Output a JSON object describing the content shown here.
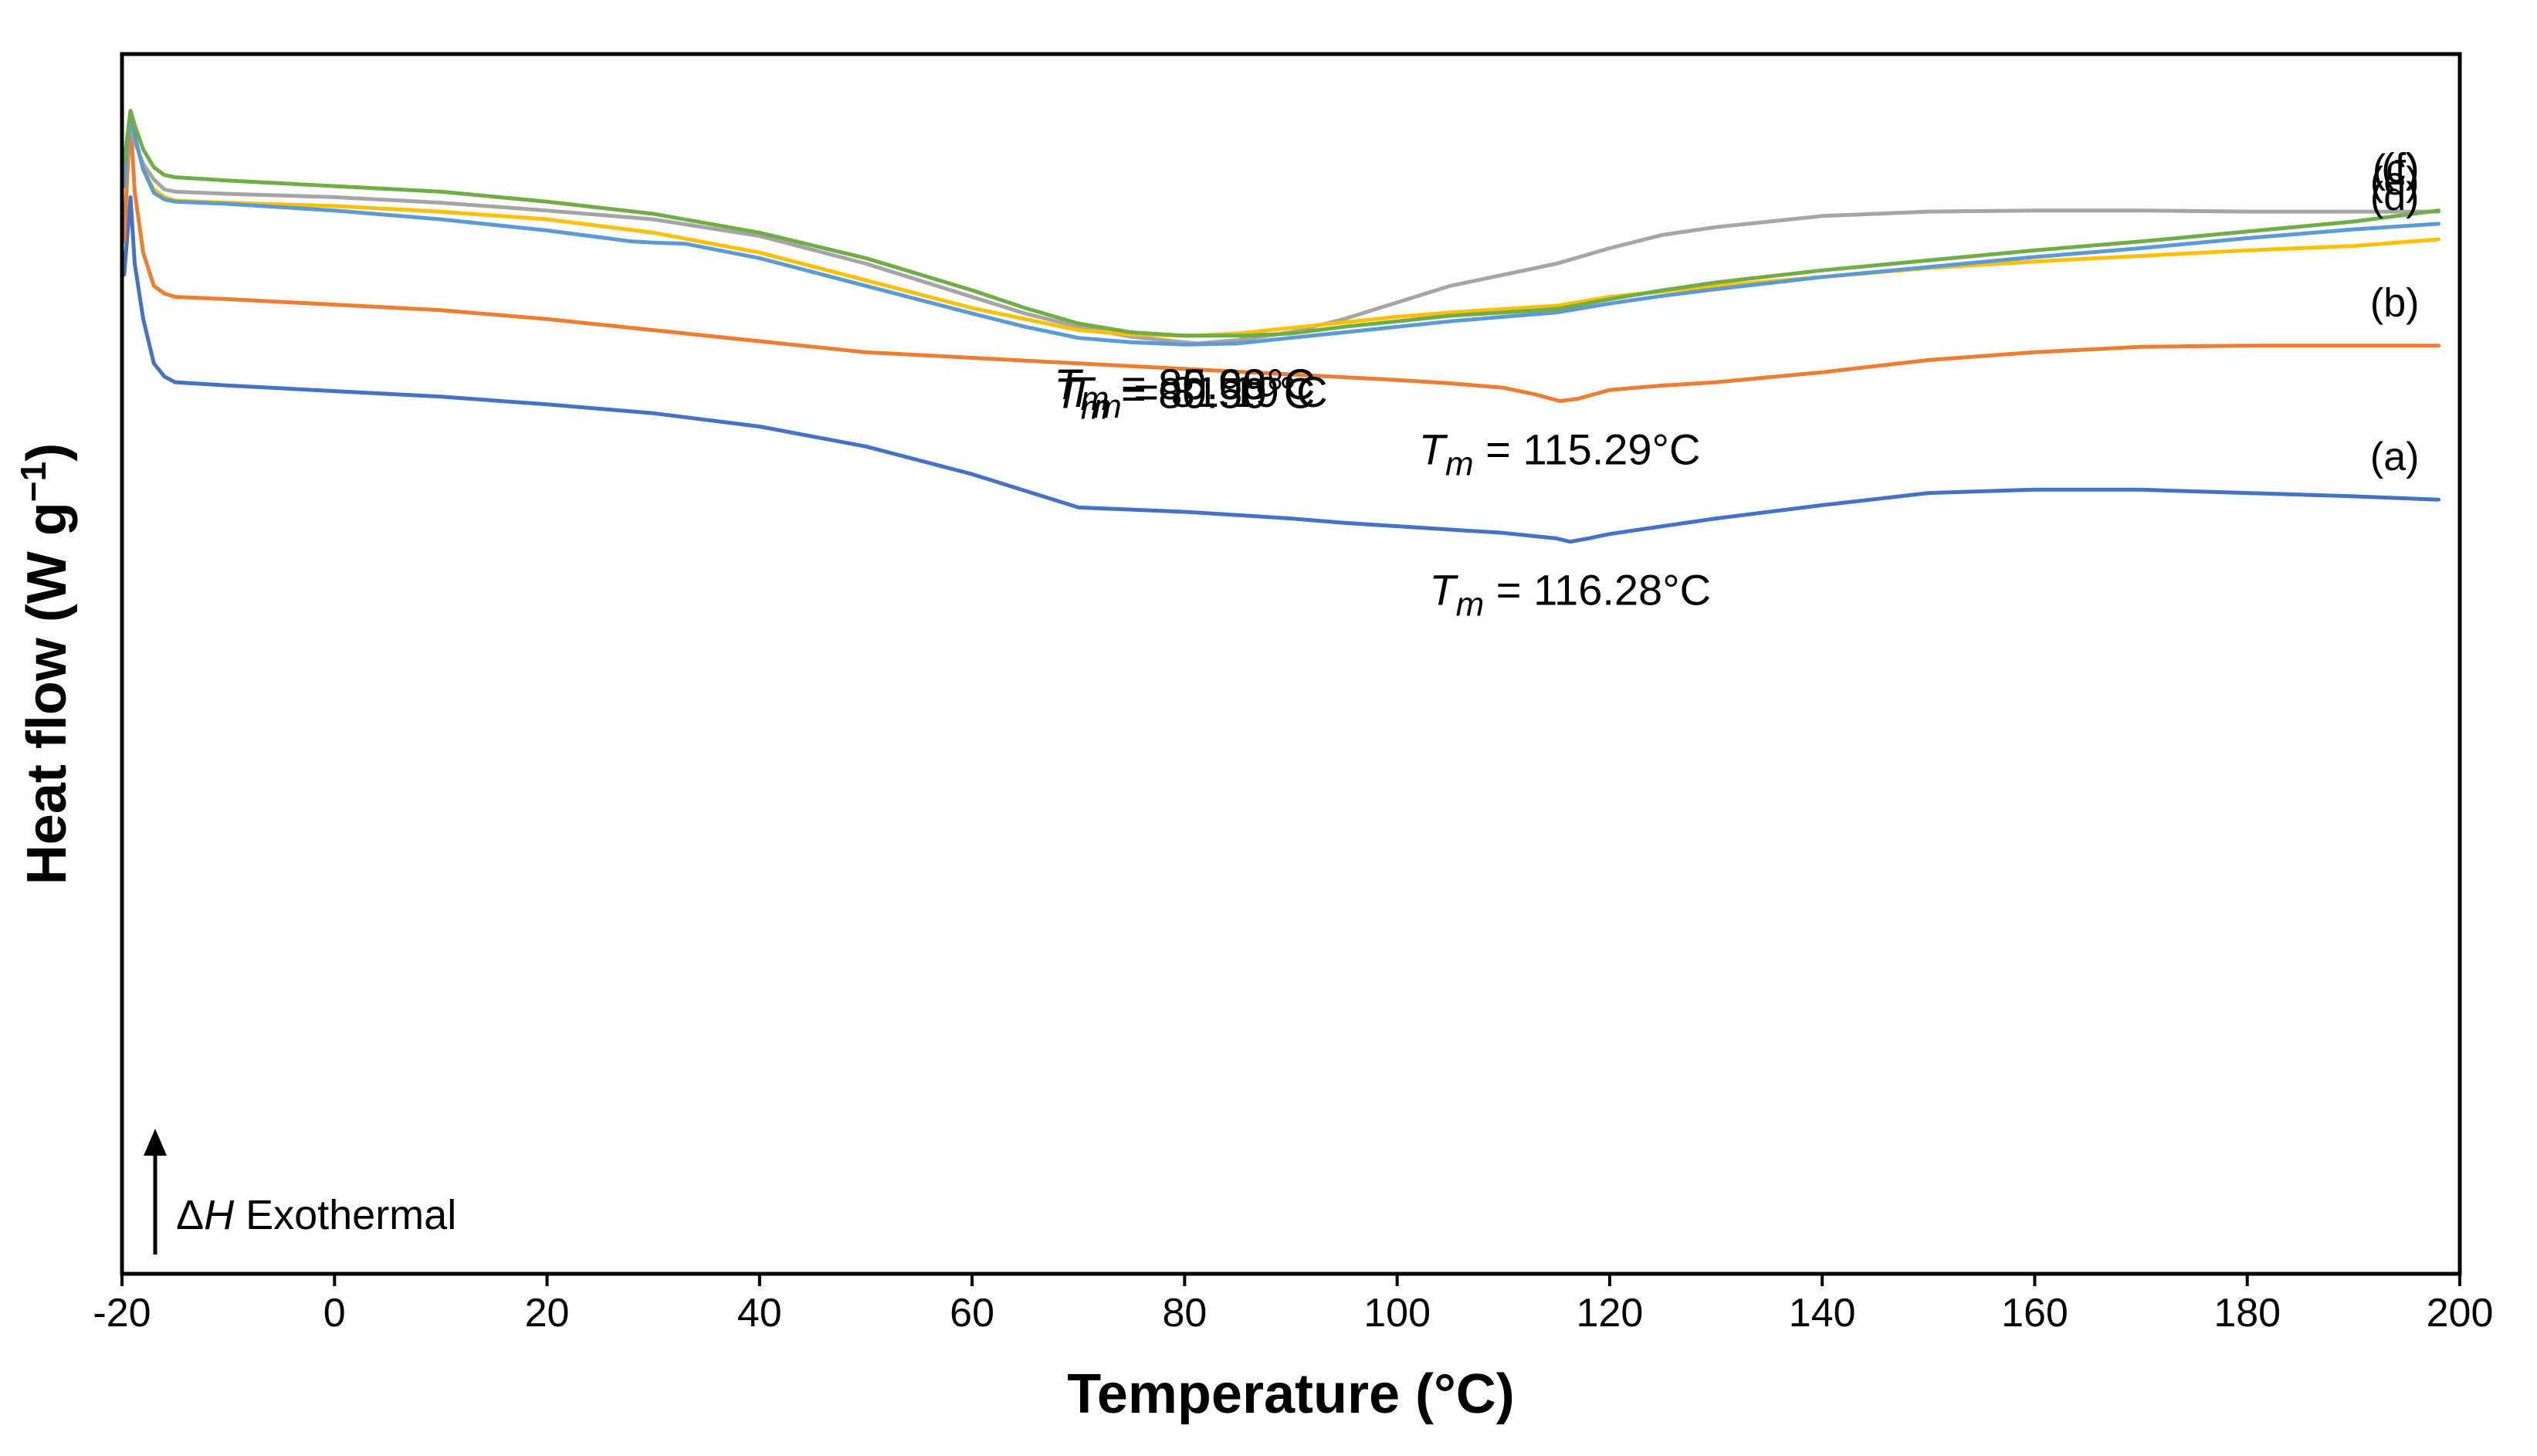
{
  "chart_data": {
    "type": "line",
    "title": "",
    "xlabel": "Temperature (°C)",
    "ylabel_main": "Heat flow (W g",
    "ylabel_sup": "−1",
    "ylabel_close": ")",
    "xlim": [
      -20,
      200
    ],
    "ylim": [
      0,
      100
    ],
    "xticks": [
      -20,
      0,
      20,
      40,
      60,
      80,
      100,
      120,
      140,
      160,
      180,
      200
    ],
    "xtick_labels": [
      "-20",
      "0",
      "20",
      "40",
      "60",
      "80",
      "100",
      "120",
      "140",
      "160",
      "180",
      "200"
    ],
    "yticks_shown": false,
    "grid": false,
    "annotation": {
      "symbol": "Δ",
      "var": "H",
      "text": " Exothermal",
      "direction": "up"
    },
    "tm_prefix": "T",
    "tm_sub": "m",
    "series": [
      {
        "name": "(a)",
        "color": "#4472C4",
        "tm_text": " = 116.28°C",
        "points": [
          [
            -19.8,
            86
          ],
          [
            -19.5,
            89.5
          ],
          [
            -19.2,
            93
          ],
          [
            -18.8,
            87
          ],
          [
            -18,
            82
          ],
          [
            -17,
            78
          ],
          [
            -16,
            76.8
          ],
          [
            -15,
            76.3
          ],
          [
            -10,
            76
          ],
          [
            0,
            75.5
          ],
          [
            10,
            75
          ],
          [
            20,
            74.3
          ],
          [
            30,
            73.5
          ],
          [
            40,
            72.3
          ],
          [
            50,
            70.5
          ],
          [
            60,
            68
          ],
          [
            65,
            66.5
          ],
          [
            70,
            65
          ],
          [
            75,
            64.8
          ],
          [
            80,
            64.6
          ],
          [
            85,
            64.3
          ],
          [
            90,
            64
          ],
          [
            95,
            63.6
          ],
          [
            100,
            63.3
          ],
          [
            105,
            63
          ],
          [
            110,
            62.7
          ],
          [
            113,
            62.4
          ],
          [
            115,
            62.2
          ],
          [
            116.28,
            61.9
          ],
          [
            118,
            62.2
          ],
          [
            120,
            62.6
          ],
          [
            125,
            63.3
          ],
          [
            130,
            64
          ],
          [
            140,
            65.2
          ],
          [
            150,
            66.3
          ],
          [
            160,
            66.6
          ],
          [
            170,
            66.6
          ],
          [
            180,
            66.3
          ],
          [
            190,
            66
          ],
          [
            198,
            65.7
          ]
        ]
      },
      {
        "name": "(b)",
        "color": "#ED7D31",
        "tm_text": " = 115.29°C",
        "points": [
          [
            -19.8,
            89
          ],
          [
            -19.5,
            95
          ],
          [
            -19.2,
            100
          ],
          [
            -18.8,
            93.5
          ],
          [
            -18,
            88
          ],
          [
            -17,
            85
          ],
          [
            -16,
            84.3
          ],
          [
            -15,
            84
          ],
          [
            -10,
            83.8
          ],
          [
            0,
            83.3
          ],
          [
            10,
            82.8
          ],
          [
            20,
            82
          ],
          [
            30,
            81
          ],
          [
            40,
            80
          ],
          [
            50,
            79
          ],
          [
            60,
            78.5
          ],
          [
            70,
            78
          ],
          [
            80,
            77.5
          ],
          [
            90,
            77
          ],
          [
            100,
            76.5
          ],
          [
            105,
            76.2
          ],
          [
            110,
            75.8
          ],
          [
            113,
            75.2
          ],
          [
            115.29,
            74.6
          ],
          [
            117,
            74.8
          ],
          [
            120,
            75.6
          ],
          [
            125,
            76
          ],
          [
            130,
            76.3
          ],
          [
            140,
            77.2
          ],
          [
            150,
            78.3
          ],
          [
            160,
            79
          ],
          [
            170,
            79.5
          ],
          [
            180,
            79.6
          ],
          [
            190,
            79.6
          ],
          [
            198,
            79.6
          ]
        ]
      },
      {
        "name": "(c)",
        "color": "#A5A5A5",
        "tm_text": " = 81.19°C",
        "points": [
          [
            -19.8,
            94
          ],
          [
            -19.5,
            97
          ],
          [
            -19.2,
            100
          ],
          [
            -18.8,
            98
          ],
          [
            -18,
            96
          ],
          [
            -17,
            94.6
          ],
          [
            -16,
            93.7
          ],
          [
            -15,
            93.5
          ],
          [
            -10,
            93.3
          ],
          [
            0,
            93
          ],
          [
            10,
            92.5
          ],
          [
            20,
            91.8
          ],
          [
            30,
            91
          ],
          [
            40,
            89.5
          ],
          [
            50,
            87
          ],
          [
            60,
            84
          ],
          [
            65,
            82.5
          ],
          [
            70,
            81.3
          ],
          [
            75,
            80.4
          ],
          [
            80,
            79.9
          ],
          [
            81.19,
            79.8
          ],
          [
            85,
            80.1
          ],
          [
            90,
            80.8
          ],
          [
            95,
            82
          ],
          [
            100,
            83.5
          ],
          [
            105,
            85
          ],
          [
            110,
            86
          ],
          [
            115,
            87
          ],
          [
            120,
            88.4
          ],
          [
            125,
            89.6
          ],
          [
            130,
            90.3
          ],
          [
            140,
            91.3
          ],
          [
            150,
            91.7
          ],
          [
            160,
            91.8
          ],
          [
            170,
            91.8
          ],
          [
            180,
            91.7
          ],
          [
            190,
            91.7
          ],
          [
            198,
            91.7
          ]
        ]
      },
      {
        "name": "(d)",
        "color": "#FFC000",
        "tm_text": " = 80.98°C",
        "points": [
          [
            -19.8,
            94
          ],
          [
            -19.5,
            97.5
          ],
          [
            -19.2,
            100.5
          ],
          [
            -18.8,
            98.5
          ],
          [
            -18,
            95.5
          ],
          [
            -17,
            93.7
          ],
          [
            -16,
            93
          ],
          [
            -15,
            92.7
          ],
          [
            -10,
            92.5
          ],
          [
            0,
            92.2
          ],
          [
            10,
            91.7
          ],
          [
            20,
            91
          ],
          [
            30,
            89.8
          ],
          [
            40,
            88
          ],
          [
            50,
            85.5
          ],
          [
            60,
            83
          ],
          [
            65,
            82
          ],
          [
            70,
            81
          ],
          [
            75,
            80.6
          ],
          [
            80,
            80.5
          ],
          [
            80.98,
            80.5
          ],
          [
            85,
            80.7
          ],
          [
            90,
            81.2
          ],
          [
            95,
            81.7
          ],
          [
            100,
            82.2
          ],
          [
            105,
            82.6
          ],
          [
            110,
            82.9
          ],
          [
            115,
            83.2
          ],
          [
            120,
            84
          ],
          [
            125,
            84.5
          ],
          [
            130,
            85
          ],
          [
            140,
            85.8
          ],
          [
            150,
            86.6
          ],
          [
            160,
            87.2
          ],
          [
            170,
            87.7
          ],
          [
            180,
            88.2
          ],
          [
            190,
            88.6
          ],
          [
            198,
            89.2
          ]
        ]
      },
      {
        "name": "(e)",
        "color": "#5B9BD5",
        "tm_text": " = 80.50°C",
        "points": [
          [
            -19.8,
            94
          ],
          [
            -19.5,
            97.5
          ],
          [
            -19.2,
            100.5
          ],
          [
            -18.8,
            98.5
          ],
          [
            -18,
            95.5
          ],
          [
            -17,
            93.4
          ],
          [
            -16,
            92.8
          ],
          [
            -15,
            92.6
          ],
          [
            -10,
            92.4
          ],
          [
            0,
            91.8
          ],
          [
            10,
            91
          ],
          [
            20,
            90
          ],
          [
            28,
            89
          ],
          [
            30,
            88.9
          ],
          [
            33,
            88.8
          ],
          [
            40,
            87.5
          ],
          [
            50,
            85
          ],
          [
            60,
            82.5
          ],
          [
            65,
            81.3
          ],
          [
            70,
            80.3
          ],
          [
            75,
            79.9
          ],
          [
            80,
            79.7
          ],
          [
            80.5,
            79.7
          ],
          [
            85,
            79.8
          ],
          [
            90,
            80.3
          ],
          [
            95,
            80.8
          ],
          [
            100,
            81.3
          ],
          [
            105,
            81.8
          ],
          [
            110,
            82.2
          ],
          [
            115,
            82.6
          ],
          [
            120,
            83.4
          ],
          [
            125,
            84.1
          ],
          [
            130,
            84.7
          ],
          [
            140,
            85.8
          ],
          [
            150,
            86.7
          ],
          [
            160,
            87.6
          ],
          [
            170,
            88.4
          ],
          [
            180,
            89.3
          ],
          [
            190,
            90.1
          ],
          [
            198,
            90.6
          ]
        ]
      },
      {
        "name": "(f)",
        "color": "#70AD47",
        "tm_text": " = 85.69°C",
        "points": [
          [
            -19.8,
            96
          ],
          [
            -19.5,
            98.5
          ],
          [
            -19.2,
            100.8
          ],
          [
            -18.8,
            99.5
          ],
          [
            -18,
            97.3
          ],
          [
            -17,
            95.7
          ],
          [
            -16,
            95
          ],
          [
            -15,
            94.8
          ],
          [
            -10,
            94.5
          ],
          [
            0,
            94
          ],
          [
            10,
            93.5
          ],
          [
            20,
            92.6
          ],
          [
            30,
            91.5
          ],
          [
            40,
            89.8
          ],
          [
            50,
            87.5
          ],
          [
            60,
            84.6
          ],
          [
            65,
            83
          ],
          [
            70,
            81.6
          ],
          [
            75,
            80.8
          ],
          [
            80,
            80.5
          ],
          [
            85.69,
            80.5
          ],
          [
            90,
            80.7
          ],
          [
            95,
            81.3
          ],
          [
            100,
            81.8
          ],
          [
            105,
            82.3
          ],
          [
            110,
            82.6
          ],
          [
            115,
            82.9
          ],
          [
            120,
            83.8
          ],
          [
            125,
            84.6
          ],
          [
            130,
            85.3
          ],
          [
            140,
            86.4
          ],
          [
            150,
            87.3
          ],
          [
            160,
            88.2
          ],
          [
            170,
            89
          ],
          [
            180,
            89.9
          ],
          [
            190,
            90.8
          ],
          [
            198,
            91.8
          ]
        ]
      }
    ]
  }
}
